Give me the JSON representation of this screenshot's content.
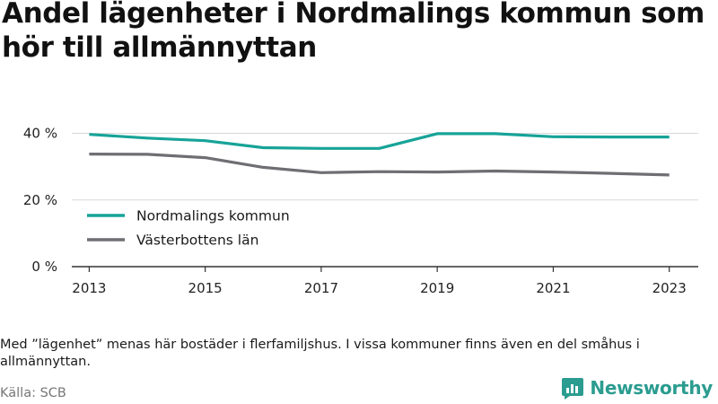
{
  "title": "Andel lägenheter i Nordmalings kommun som hör till allmännyttan",
  "note": "Med ”lägenhet” menas här bostäder i flerfamiljshus. I vissa kommuner finns även en del småhus i allmännyttan.",
  "source": "Källa: SCB",
  "brand": {
    "name": "Newsworthy",
    "icon": "newsworthy-logo-icon",
    "color": "#2b9c90"
  },
  "chart_data": {
    "type": "line",
    "x": [
      2013,
      2014,
      2015,
      2016,
      2017,
      2018,
      2019,
      2020,
      2021,
      2022,
      2023
    ],
    "x_tick_labels": [
      "2013",
      "2015",
      "2017",
      "2019",
      "2021",
      "2023"
    ],
    "y_tick_labels": [
      "0 %",
      "20 %",
      "40 %"
    ],
    "y_ticks": [
      0,
      20,
      40
    ],
    "ylim": [
      0,
      45
    ],
    "xlim": [
      2012.7,
      2023.5
    ],
    "grid": true,
    "legend_placement": "bottom-left",
    "series": [
      {
        "name": "Nordmalings kommun",
        "color": "#17a398",
        "values": [
          39.7,
          38.6,
          37.8,
          35.7,
          35.5,
          35.5,
          39.9,
          39.9,
          39.0,
          38.9,
          38.9
        ]
      },
      {
        "name": "Västerbottens län",
        "color": "#6e6e73",
        "values": [
          33.8,
          33.7,
          32.7,
          29.8,
          28.2,
          28.5,
          28.4,
          28.7,
          28.4,
          28.0,
          27.5
        ]
      }
    ]
  }
}
